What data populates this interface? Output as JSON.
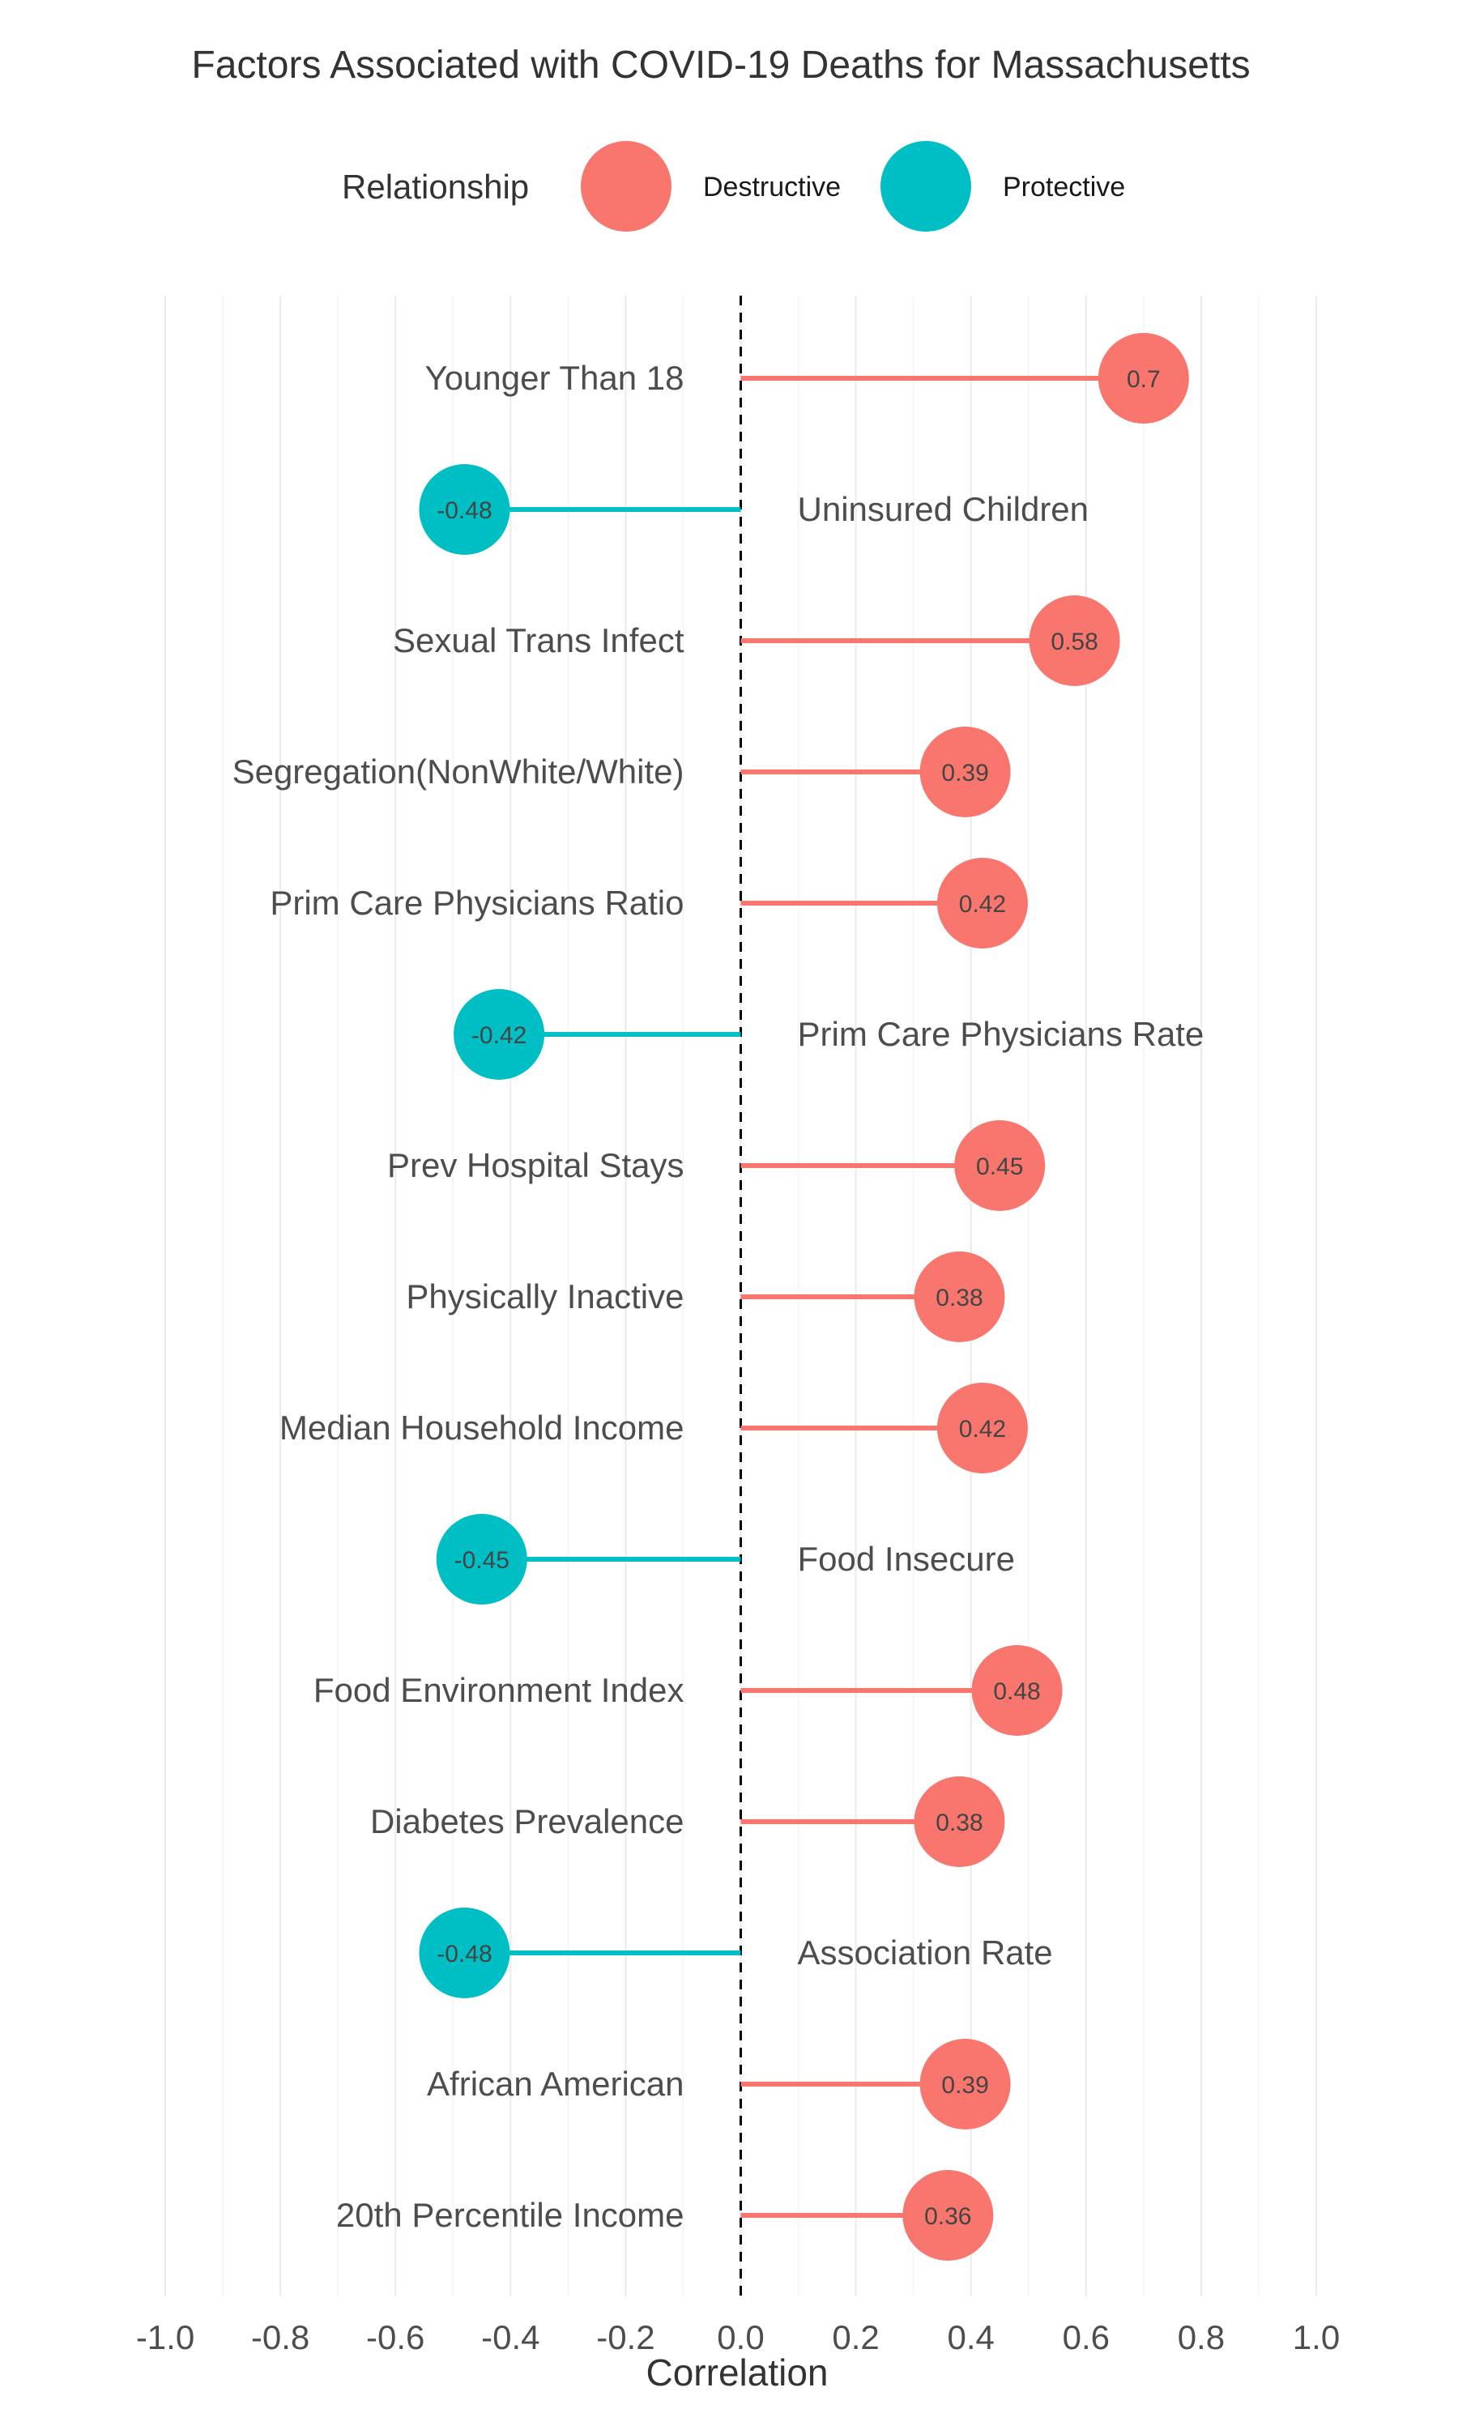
{
  "chart_data": {
    "type": "lollipop",
    "title": "Factors Associated with COVID-19 Deaths for Massachusetts",
    "xlabel": "Correlation",
    "ylabel": "",
    "xlim": [
      -1.0,
      1.0
    ],
    "x_ticks": [
      "-1.0",
      "-0.8",
      "-0.6",
      "-0.4",
      "-0.2",
      "0.0",
      "0.2",
      "0.4",
      "0.6",
      "0.8",
      "1.0"
    ],
    "grid": true,
    "reference_line": 0.0,
    "legend": {
      "title": "Relationship",
      "position": "top",
      "entries": [
        {
          "name": "Destructive",
          "color": "#F8766D"
        },
        {
          "name": "Protective",
          "color": "#00BFC4"
        }
      ]
    },
    "categories": [
      "Younger Than 18",
      "Uninsured Children",
      "Sexual Trans Infect",
      "Segregation(NonWhite/White)",
      "Prim Care Physicians Ratio",
      "Prim Care Physicians Rate",
      "Prev Hospital Stays",
      "Physically Inactive",
      "Median Household Income",
      "Food Insecure",
      "Food Environment Index",
      "Diabetes Prevalence",
      "Association Rate",
      "African American",
      "20th Percentile Income"
    ],
    "values": [
      0.7,
      -0.48,
      0.58,
      0.39,
      0.42,
      -0.42,
      0.45,
      0.38,
      0.42,
      -0.45,
      0.48,
      0.38,
      -0.48,
      0.39,
      0.36
    ],
    "value_labels": [
      "0.7",
      "-0.48",
      "0.58",
      "0.39",
      "0.42",
      "-0.42",
      "0.45",
      "0.38",
      "0.42",
      "-0.45",
      "0.48",
      "0.38",
      "-0.48",
      "0.39",
      "0.36"
    ],
    "relationship": [
      "Destructive",
      "Protective",
      "Destructive",
      "Destructive",
      "Destructive",
      "Protective",
      "Destructive",
      "Destructive",
      "Destructive",
      "Protective",
      "Destructive",
      "Destructive",
      "Protective",
      "Destructive",
      "Destructive"
    ]
  }
}
